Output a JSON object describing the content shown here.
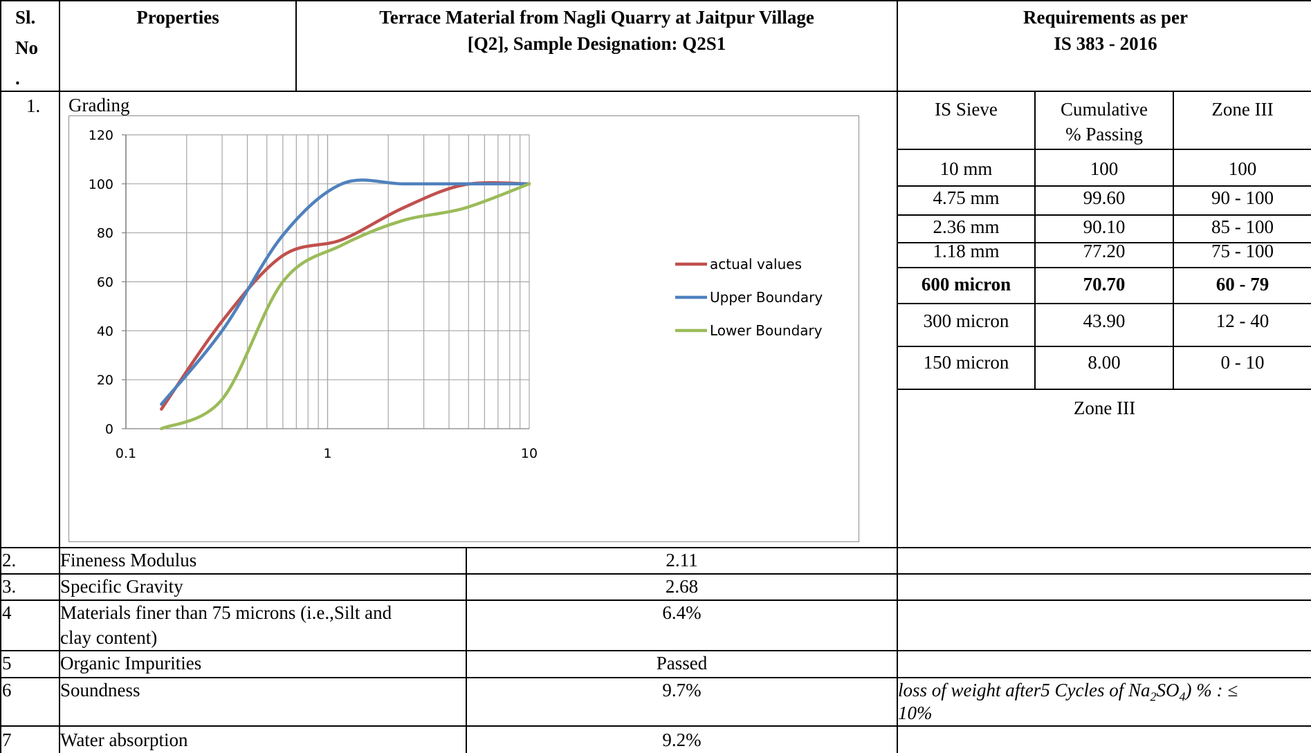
{
  "header": {
    "slno_line1": "Sl.",
    "slno_line2": "No",
    "slno_line3": ".",
    "properties": "Properties",
    "material_line1": "Terrace Material from Nagli Quarry at Jaitpur Village",
    "material_line2": "[Q2], Sample Designation: Q2S1",
    "req_line1": "Requirements as per",
    "req_line2": "IS 383 - 2016"
  },
  "row1": {
    "no": "1.",
    "property": "Grading"
  },
  "chart_data": {
    "type": "line",
    "xscale": "log",
    "xlim": [
      0.1,
      10
    ],
    "ylim": [
      0,
      120
    ],
    "yticks": [
      "0",
      "20",
      "40",
      "60",
      "80",
      "100",
      "120"
    ],
    "xticks": [
      "0.1",
      "1",
      "10"
    ],
    "grid": true,
    "legend": "right",
    "series": [
      {
        "name": "actual values",
        "color": "#c0504d",
        "x": [
          0.15,
          0.3,
          0.6,
          1.18,
          2.36,
          4.75,
          10
        ],
        "y": [
          8,
          43.9,
          70.7,
          77.2,
          90.1,
          99.6,
          100
        ]
      },
      {
        "name": "Upper Boundary",
        "color": "#4f81bd",
        "x": [
          0.15,
          0.3,
          0.6,
          1.18,
          2.36,
          4.75,
          10
        ],
        "y": [
          10,
          40,
          79,
          100,
          100,
          100,
          100
        ]
      },
      {
        "name": "Lower Boundary",
        "color": "#9bbb59",
        "x": [
          0.15,
          0.3,
          0.6,
          1.18,
          2.36,
          4.75,
          10
        ],
        "y": [
          0,
          12,
          60,
          75,
          85,
          90,
          100
        ]
      }
    ]
  },
  "sieve_table": {
    "headers": [
      "IS Sieve",
      "Cumulative",
      "% Passing",
      "Zone III"
    ],
    "rows": [
      {
        "sieve": "10 mm",
        "passing": "100",
        "zone": "100",
        "bold": false
      },
      {
        "sieve": "4.75 mm",
        "passing": "99.60",
        "zone": "90 - 100",
        "bold": false
      },
      {
        "sieve": "2.36 mm",
        "passing": "90.10",
        "zone": "85 - 100",
        "bold": false
      },
      {
        "sieve": "1.18 mm",
        "passing": "77.20",
        "zone": "75 - 100",
        "bold": false
      },
      {
        "sieve": "600 micron",
        "passing": "70.70",
        "zone": "60 - 79",
        "bold": true
      },
      {
        "sieve": "300 micron",
        "passing": "43.90",
        "zone": "12 - 40",
        "bold": false
      },
      {
        "sieve": "150 micron",
        "passing": "8.00",
        "zone": "0 - 10",
        "bold": false
      }
    ],
    "zone_caption": "Zone III"
  },
  "rows": [
    {
      "no": "2.",
      "property": "Fineness Modulus",
      "value": "2.11",
      "req": ""
    },
    {
      "no": "3.",
      "property": "Specific Gravity",
      "value": "2.68",
      "req": ""
    },
    {
      "no": "4",
      "property": " Materials finer than 75 microns (i.e.,Silt and",
      "property2": "clay content)",
      "value": "6.4%",
      "req": ""
    },
    {
      "no": "5",
      "property": "Organic Impurities",
      "value": "Passed",
      "req": ""
    },
    {
      "no": "6",
      "property": "Soundness",
      "value": "9.7%",
      "req_a": "loss of weight after5 Cycles of Na",
      "req_sub1": "2",
      "req_b": "SO",
      "req_sub2": "4",
      "req_c": ") % : ≤",
      "req2": "10%"
    },
    {
      "no": "7",
      "property": "Water absorption",
      "value": "9.2%",
      "req": ""
    }
  ]
}
